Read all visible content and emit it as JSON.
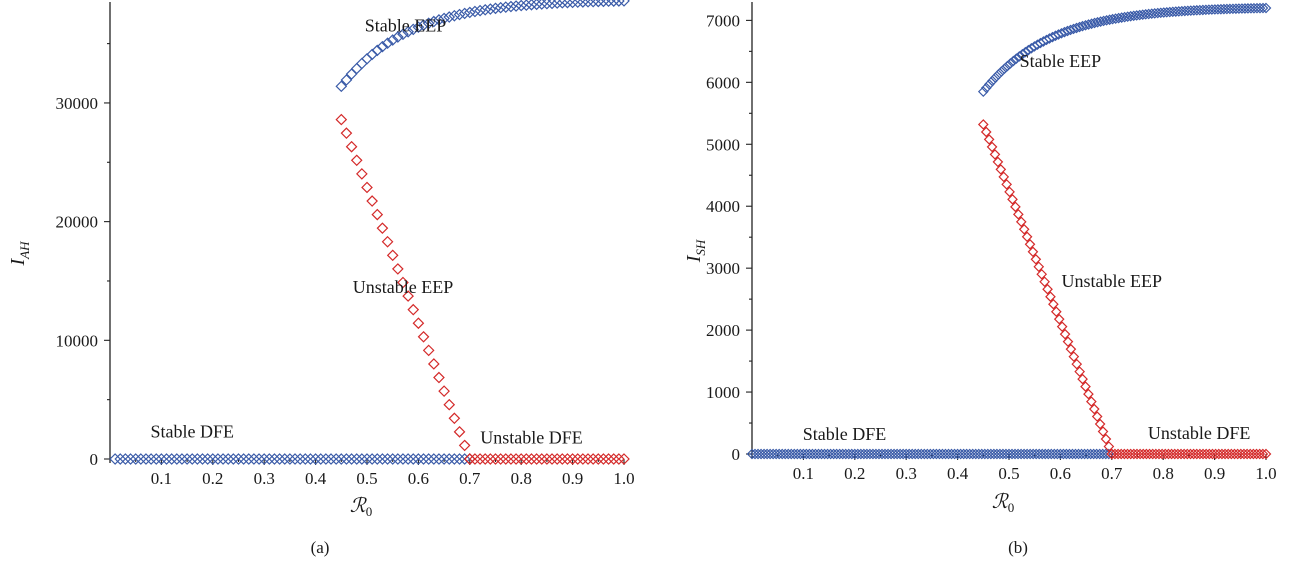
{
  "chart_data": [
    {
      "type": "scatter",
      "panel_label": "(a)",
      "xlabel_main": "ℛ",
      "xlabel_sub": "0",
      "ylabel_main": "I",
      "ylabel_sub": "AH",
      "xlim": [
        0,
        1.0
      ],
      "ylim": [
        0,
        38000
      ],
      "x_ticks": [
        "0.1",
        "0.2",
        "0.3",
        "0.4",
        "0.5",
        "0.6",
        "0.7",
        "0.8",
        "0.9",
        "1.0"
      ],
      "x_tick_values": [
        0.1,
        0.2,
        0.3,
        0.4,
        0.5,
        0.6,
        0.7,
        0.8,
        0.9,
        1.0
      ],
      "y_ticks": [
        "0",
        "10000",
        "20000",
        "30000"
      ],
      "y_tick_values": [
        0,
        10000,
        20000,
        30000
      ],
      "grid": false,
      "series": [
        {
          "role": "stable-dfe",
          "color": "#3a5ba8",
          "x_start": 0.01,
          "x_end": 0.7,
          "count": 70,
          "y_values": "zero"
        },
        {
          "role": "unstable-dfe",
          "color": "#d42a2a",
          "x_start": 0.7,
          "x_end": 1.0,
          "count": 31,
          "y_values": "zero"
        },
        {
          "role": "stable-eep",
          "color": "#3a5ba8",
          "x_start": 0.45,
          "x_end": 1.0,
          "count": 56,
          "y_at_start": 31400,
          "y_at_end": 38600
        },
        {
          "role": "unstable-eep",
          "color": "#d42a2a",
          "x_start": 0.45,
          "x_end": 0.7,
          "count": 26,
          "y_at_start": 28600,
          "y_at_end": 0
        }
      ],
      "annotations": [
        {
          "text": "Stable EEP",
          "x": 0.575,
          "y": 36000
        },
        {
          "text": "Unstable EEP",
          "x": 0.57,
          "y": 14000
        },
        {
          "text": "Stable DFE",
          "x": 0.16,
          "y": 1800
        },
        {
          "text": "Unstable DFE",
          "x": 0.82,
          "y": 1300
        }
      ]
    },
    {
      "type": "scatter",
      "panel_label": "(b)",
      "xlabel_main": "ℛ",
      "xlabel_sub": "0",
      "ylabel_main": "I",
      "ylabel_sub": "SH",
      "xlim": [
        0,
        1.0
      ],
      "ylim": [
        0,
        7200
      ],
      "x_ticks": [
        "0.1",
        "0.2",
        "0.3",
        "0.4",
        "0.5",
        "0.6",
        "0.7",
        "0.8",
        "0.9",
        "1.0"
      ],
      "x_tick_values": [
        0.1,
        0.2,
        0.3,
        0.4,
        0.5,
        0.6,
        0.7,
        0.8,
        0.9,
        1.0
      ],
      "y_ticks": [
        "0",
        "1000",
        "2000",
        "3000",
        "4000",
        "5000",
        "6000",
        "7000"
      ],
      "y_tick_values": [
        0,
        1000,
        2000,
        3000,
        4000,
        5000,
        6000,
        7000
      ],
      "grid": false,
      "series": [
        {
          "role": "stable-dfe",
          "color": "#3a5ba8",
          "x_start": 0.0,
          "x_end": 0.7,
          "count": 120,
          "y_values": "zero"
        },
        {
          "role": "unstable-dfe",
          "color": "#d42a2a",
          "x_start": 0.7,
          "x_end": 1.0,
          "count": 50,
          "y_values": "zero"
        },
        {
          "role": "stable-eep",
          "color": "#3a5ba8",
          "x_start": 0.45,
          "x_end": 1.0,
          "count": 95,
          "y_at_start": 5850,
          "y_at_end": 7200
        },
        {
          "role": "unstable-eep",
          "color": "#d42a2a",
          "x_start": 0.45,
          "x_end": 0.7,
          "count": 45,
          "y_at_start": 5320,
          "y_at_end": 0
        }
      ],
      "annotations": [
        {
          "text": "Stable EEP",
          "x": 0.6,
          "y": 6250
        },
        {
          "text": "Unstable EEP",
          "x": 0.7,
          "y": 2700
        },
        {
          "text": "Stable DFE",
          "x": 0.18,
          "y": 230
        },
        {
          "text": "Unstable DFE",
          "x": 0.87,
          "y": 240
        }
      ]
    }
  ]
}
